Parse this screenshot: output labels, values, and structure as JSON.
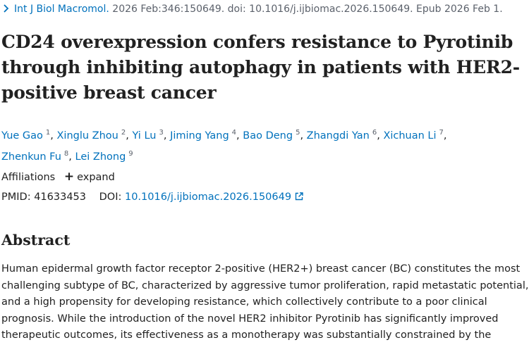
{
  "citation": {
    "journal": "Int J Biol Macromol.",
    "details": "2026 Feb:346:150649. doi: 10.1016/j.ijbiomac.2026.150649. Epub 2026 Feb 1.",
    "icon": "chevron-right-icon"
  },
  "article": {
    "title": "CD24 overexpression confers resistance to Pyrotinib through inhibiting autophagy in patients with HER2-positive breast cancer",
    "authors": [
      {
        "name": "Yue Gao",
        "aff": "1"
      },
      {
        "name": "Xinglu Zhou",
        "aff": "2"
      },
      {
        "name": "Yi Lu",
        "aff": "3"
      },
      {
        "name": "Jiming Yang",
        "aff": "4"
      },
      {
        "name": "Bao Deng",
        "aff": "5"
      },
      {
        "name": "Zhangdi Yan",
        "aff": "6"
      },
      {
        "name": "Xichuan Li",
        "aff": "7"
      },
      {
        "name": "Zhenkun Fu",
        "aff": "8"
      },
      {
        "name": "Lei Zhong",
        "aff": "9"
      }
    ],
    "separator": ",",
    "affiliations_label": "Affiliations",
    "expand_label": "expand",
    "expand_icon": "plus-icon",
    "pmid_label": "PMID:",
    "pmid": "41633453",
    "doi_label": "DOI:",
    "doi": "10.1016/j.ijbiomac.2026.150649",
    "doi_icon": "external-link-icon"
  },
  "abstract": {
    "heading": "Abstract",
    "lines": [
      "Human epidermal growth factor receptor 2-positive (HER2+) breast cancer (BC) constitutes the most",
      "challenging subtype of BC, characterized by aggressive tumor proliferation, rapid metastatic potential,",
      "and a high propensity for developing resistance, which collectively contribute to a poor clinical",
      "prognosis. While the introduction of the novel HER2 inhibitor Pyrotinib has significantly improved",
      "therapeutic outcomes, its effectiveness as a monotherapy was substantially constrained by the"
    ]
  },
  "colors": {
    "link": "#0071bc",
    "text": "#212121",
    "muted": "#5b616b"
  }
}
